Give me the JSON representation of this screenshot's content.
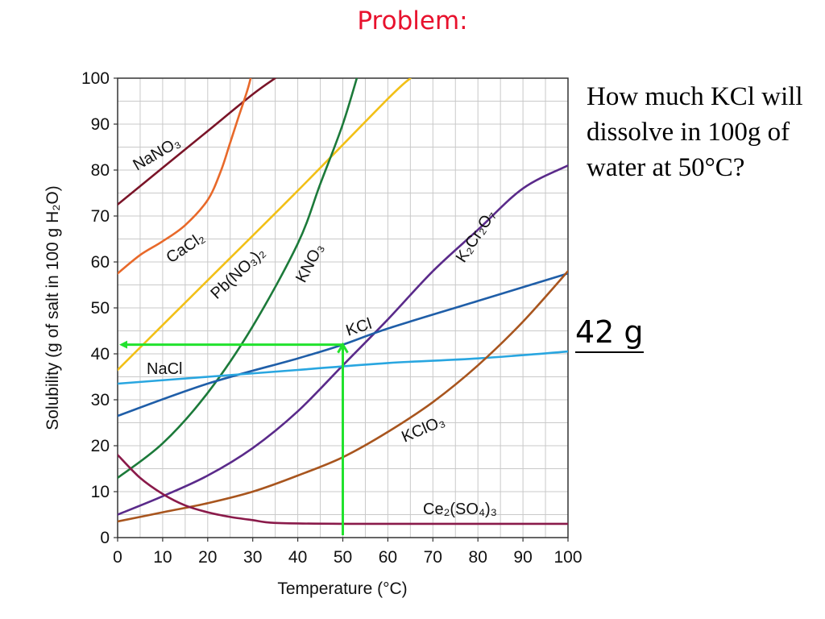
{
  "slide": {
    "title": "Problem:",
    "question": "How much KCl will dissolve in 100g of water at 50°C?",
    "answer": "42 g"
  },
  "chart_data": {
    "type": "line",
    "title": "",
    "xlabel": "Temperature (°C)",
    "ylabel": "Solubility (g of salt in 100 g H₂O)",
    "xlim": [
      0,
      100
    ],
    "ylim": [
      0,
      100
    ],
    "xticks": [
      0,
      10,
      20,
      30,
      40,
      50,
      60,
      70,
      80,
      90,
      100
    ],
    "yticks": [
      0,
      10,
      20,
      30,
      40,
      50,
      60,
      70,
      80,
      90,
      100
    ],
    "grid": true,
    "series": [
      {
        "name": "NaNO₃",
        "color": "#7a1428",
        "x": [
          0,
          10,
          20,
          30,
          35
        ],
        "y": [
          72.5,
          80.5,
          88.5,
          96.5,
          100
        ]
      },
      {
        "name": "CaCl₂",
        "color": "#e8692a",
        "x": [
          0,
          5,
          10,
          15,
          20,
          23,
          25,
          27,
          29,
          30.5
        ],
        "y": [
          57.5,
          61.5,
          64.5,
          68,
          73.5,
          80,
          86,
          92,
          98,
          104
        ]
      },
      {
        "name": "Pb(NO₃)₂",
        "color": "#f2c017",
        "x": [
          0,
          20,
          40,
          60,
          65
        ],
        "y": [
          36.5,
          56,
          75.5,
          95.5,
          100
        ]
      },
      {
        "name": "KNO₃",
        "color": "#1c7a3a",
        "x": [
          0,
          10,
          20,
          30,
          40,
          45,
          50,
          54
        ],
        "y": [
          13,
          20.5,
          31.5,
          46,
          64,
          77,
          90,
          103
        ]
      },
      {
        "name": "K₂Cr₂O₇",
        "color": "#5a2a8a",
        "x": [
          0,
          10,
          20,
          30,
          40,
          50,
          60,
          70,
          80,
          90,
          100
        ],
        "y": [
          5,
          9,
          13.5,
          19.5,
          27.5,
          37.5,
          47.5,
          58,
          67,
          76,
          81
        ]
      },
      {
        "name": "KCl",
        "color": "#1f5ea8",
        "x": [
          0,
          20,
          40,
          50,
          60,
          80,
          100
        ],
        "y": [
          26.5,
          33.5,
          39,
          42,
          45.5,
          51.5,
          57.5
        ]
      },
      {
        "name": "NaCl",
        "color": "#29a6e0",
        "x": [
          0,
          20,
          40,
          60,
          80,
          100
        ],
        "y": [
          33.5,
          35,
          36.5,
          38,
          39,
          40.5
        ]
      },
      {
        "name": "KClO₃",
        "color": "#a8551e",
        "x": [
          0,
          10,
          20,
          30,
          40,
          50,
          60,
          70,
          80,
          90,
          100
        ],
        "y": [
          3.5,
          5.5,
          7.5,
          10,
          13.5,
          17.5,
          23,
          29.5,
          37.5,
          47,
          58
        ]
      },
      {
        "name": "Ce₂(SO₄)₃",
        "color": "#8a1a4a",
        "x": [
          0,
          5,
          10,
          15,
          20,
          25,
          30,
          35,
          50,
          100
        ],
        "y": [
          18,
          13,
          9.5,
          7,
          5.5,
          4.5,
          3.8,
          3.2,
          3,
          3
        ]
      }
    ],
    "annotations": [
      {
        "type": "arrow-path",
        "color": "#22e22e",
        "points": [
          [
            50,
            0.5
          ],
          [
            50,
            42
          ],
          [
            0,
            42
          ]
        ],
        "note": "read-off at 50 °C"
      }
    ]
  }
}
